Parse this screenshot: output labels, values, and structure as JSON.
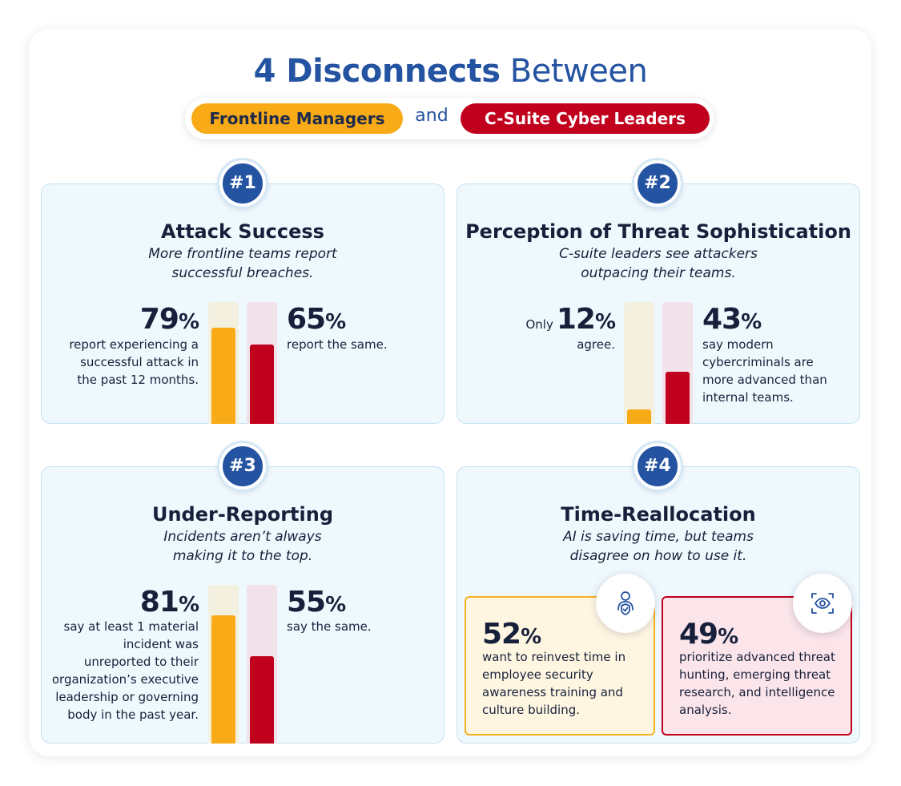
{
  "header": {
    "title_bold": "4 Disconnects",
    "title_light": "Between",
    "group_a": "Frontline Managers",
    "conjunction": "and",
    "group_b": "C-Suite Cyber Leaders"
  },
  "colors": {
    "frontline": "#f8aa17",
    "csuite": "#c1001d",
    "accent": "#2453a1"
  },
  "cards": [
    {
      "badge": "#1",
      "title": "Attack Success",
      "subtitle_1": "More frontline teams report",
      "subtitle_2": "successful breaches.",
      "frontline": {
        "value": "79",
        "unit": "%",
        "desc_1": "report experiencing a",
        "desc_2": "successful attack in",
        "desc_3": "the past 12 months.",
        "fill_pct": 79
      },
      "csuite": {
        "value": "65",
        "unit": "%",
        "desc_1": "report the same.",
        "fill_pct": 65
      }
    },
    {
      "badge": "#2",
      "title": "Perception of Threat Sophistication",
      "subtitle_1": "C-suite leaders see attackers",
      "subtitle_2": "outpacing their teams.",
      "frontline": {
        "prefix": "Only",
        "value": "12",
        "unit": "%",
        "desc_1": "agree.",
        "fill_pct": 12
      },
      "csuite": {
        "value": "43",
        "unit": "%",
        "desc_1": "say modern",
        "desc_2": "cybercriminals are",
        "desc_3": "more advanced than",
        "desc_4": "internal teams.",
        "fill_pct": 43
      }
    },
    {
      "badge": "#3",
      "title": "Under-Reporting",
      "subtitle_1": "Incidents aren’t always",
      "subtitle_2": "making it to the top.",
      "frontline": {
        "value": "81",
        "unit": "%",
        "desc_1": "say at least 1 material",
        "desc_2": "incident was",
        "desc_3": "unreported to their",
        "desc_4": "organization’s executive",
        "desc_5": "leadership or governing",
        "desc_6": "body in the past year.",
        "fill_pct": 81
      },
      "csuite": {
        "value": "55",
        "unit": "%",
        "desc_1": "say the same.",
        "fill_pct": 55
      }
    },
    {
      "badge": "#4",
      "title": "Time-Reallocation",
      "subtitle_1": "AI is saving time, but teams",
      "subtitle_2": "disagree on how to use it.",
      "frontline": {
        "value": "52",
        "unit": "%",
        "icon": "person-shield-icon",
        "desc_1": "want to reinvest time in",
        "desc_2": "employee security",
        "desc_3": "awareness training and",
        "desc_4": "culture building."
      },
      "csuite": {
        "value": "49",
        "unit": "%",
        "icon": "eye-scan-icon",
        "desc_1": "prioritize advanced threat",
        "desc_2": "hunting, emerging threat",
        "desc_3": "research, and intelligence",
        "desc_4": "analysis."
      }
    }
  ]
}
